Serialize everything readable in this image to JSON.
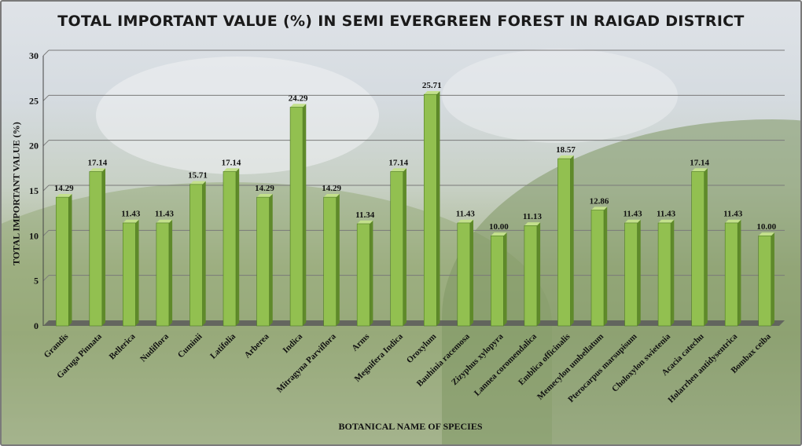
{
  "chart_data": {
    "type": "bar",
    "title": "TOTAL IMPORTANT VALUE (%) IN SEMI EVERGREEN FOREST IN RAIGAD DISTRICT",
    "xlabel": "BOTANICAL NAME OF SPECIES",
    "ylabel": "TOTAL IMPORTANT VALUE (%)",
    "ylim": [
      0,
      30
    ],
    "yticks": [
      "0",
      "5",
      "10",
      "15",
      "20",
      "25",
      "30"
    ],
    "grid": true,
    "bar_color": "#92c050",
    "categories": [
      "Grandis",
      "Garuga Pinnata",
      "Bellerica",
      "Nudiflora",
      "Cuminii",
      "Latifolia",
      "Arberea",
      "Indica",
      "Mitragyna Parviflora",
      "Arms",
      "Megnifera Indica",
      "Oroxylum",
      "Bauhinia racemosa",
      "Zizyphus xylopyra",
      "Lannea coromendalica",
      "Emblica officinalis",
      "Memecylon umbellatum",
      "Pterocarpus marsupisum",
      "Choloxylon swietenia",
      "Acacia catechu",
      "Holarrhen antidysentrica",
      "Bombax ceiba"
    ],
    "values": [
      14.29,
      17.14,
      11.43,
      11.43,
      15.71,
      17.14,
      14.29,
      24.29,
      14.29,
      11.34,
      17.14,
      25.71,
      11.43,
      10.0,
      11.13,
      18.57,
      12.86,
      11.43,
      11.43,
      17.14,
      11.43,
      10.0
    ],
    "value_labels": [
      "14.29",
      "17.14",
      "11.43",
      "11.43",
      "15.71",
      "17.14",
      "14.29",
      "24.29",
      "14.29",
      "11.34",
      "17.14",
      "25.71",
      "11.43",
      "10.00",
      "11.13",
      "18.57",
      "12.86",
      "11.43",
      "11.43",
      "17.14",
      "11.43",
      "10.00"
    ]
  }
}
